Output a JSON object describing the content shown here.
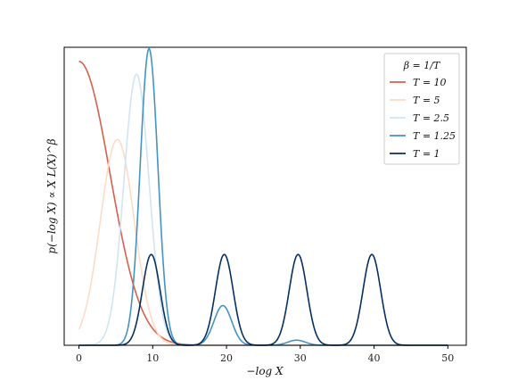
{
  "chart_data": {
    "type": "line",
    "title": "",
    "xlabel": "−log X",
    "ylabel": "p(−log X) ∝ X L(X)^β",
    "xlim": [
      -2,
      52.5
    ],
    "ylim": [
      0,
      1.05
    ],
    "xticks": [
      0,
      10,
      20,
      30,
      40,
      50
    ],
    "yticks_shown": false,
    "grid": false,
    "legend_title": "β = 1/T",
    "legend_position": "top-right",
    "x_range": [
      0,
      50
    ],
    "series": [
      {
        "name": "T = 10",
        "color": "#d6604d",
        "model": "sum-of-gaussians",
        "components": [
          {
            "mu": 0,
            "sigma": 4.2,
            "amp": 1.0
          }
        ]
      },
      {
        "name": "T = 5",
        "color": "#fddbc7",
        "model": "sum-of-gaussians",
        "components": [
          {
            "mu": 5.2,
            "sigma": 2.3,
            "amp": 0.725
          }
        ]
      },
      {
        "name": "T = 2.5",
        "color": "#d1e5f0",
        "model": "sum-of-gaussians",
        "components": [
          {
            "mu": 7.8,
            "sigma": 1.7,
            "amp": 0.955
          }
        ]
      },
      {
        "name": "T = 1.25",
        "color": "#4393c3",
        "model": "sum-of-gaussians",
        "components": [
          {
            "mu": 9.5,
            "sigma": 1.2,
            "amp": 1.045
          },
          {
            "mu": 19.5,
            "sigma": 1.2,
            "amp": 0.14
          },
          {
            "mu": 29.5,
            "sigma": 1.2,
            "amp": 0.018
          }
        ]
      },
      {
        "name": "T = 1",
        "color": "#053061",
        "model": "sum-of-gaussians",
        "components": [
          {
            "mu": 9.8,
            "sigma": 1.2,
            "amp": 0.32
          },
          {
            "mu": 19.7,
            "sigma": 1.2,
            "amp": 0.32
          },
          {
            "mu": 29.7,
            "sigma": 1.2,
            "amp": 0.32
          },
          {
            "mu": 39.7,
            "sigma": 1.2,
            "amp": 0.32
          }
        ]
      }
    ]
  }
}
